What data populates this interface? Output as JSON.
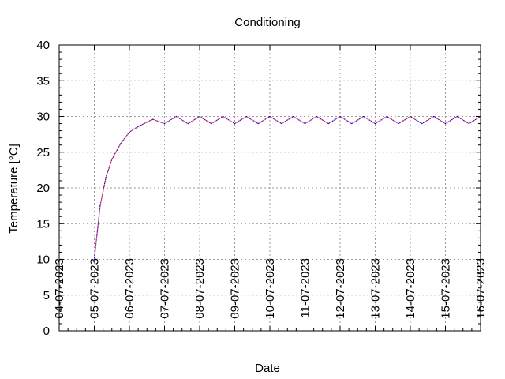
{
  "chart_data": {
    "type": "line",
    "title": "Conditioning",
    "xlabel": "Date",
    "ylabel": "Temperature [°C]",
    "xlim": [
      "04-07-2023",
      "16-07-2023"
    ],
    "ylim": [
      0,
      40
    ],
    "x_ticks": [
      "04-07-2023",
      "05-07-2023",
      "06-07-2023",
      "07-07-2023",
      "08-07-2023",
      "09-07-2023",
      "10-07-2023",
      "11-07-2023",
      "12-07-2023",
      "13-07-2023",
      "14-07-2023",
      "15-07-2023",
      "16-07-2023"
    ],
    "y_ticks": [
      0,
      5,
      10,
      15,
      20,
      25,
      30,
      35,
      40
    ],
    "grid": true,
    "colors": {
      "series_a": "#ff0000",
      "series_b": "#0000ff"
    },
    "series": [
      {
        "x": [
          "05-07-2023 00:00",
          "05-07-2023 04:00",
          "05-07-2023 08:00",
          "05-07-2023 12:00",
          "05-07-2023 18:00",
          "06-07-2023 00:00",
          "06-07-2023 06:00",
          "06-07-2023 12:00",
          "06-07-2023 16:00",
          "07-07-2023 00:00",
          "07-07-2023 08:00",
          "07-07-2023 16:00",
          "08-07-2023 00:00",
          "08-07-2023 08:00",
          "08-07-2023 16:00",
          "09-07-2023 00:00",
          "09-07-2023 08:00",
          "09-07-2023 16:00",
          "10-07-2023 00:00",
          "10-07-2023 08:00",
          "10-07-2023 16:00",
          "11-07-2023 00:00",
          "11-07-2023 08:00",
          "11-07-2023 16:00",
          "12-07-2023 00:00",
          "12-07-2023 08:00",
          "12-07-2023 16:00",
          "13-07-2023 00:00",
          "13-07-2023 08:00",
          "13-07-2023 16:00",
          "14-07-2023 00:00",
          "14-07-2023 08:00",
          "14-07-2023 16:00",
          "15-07-2023 00:00",
          "15-07-2023 08:00",
          "15-07-2023 16:00",
          "16-07-2023 00:00"
        ],
        "y": [
          10.0,
          17.5,
          21.5,
          24.0,
          26.2,
          27.8,
          28.6,
          29.2,
          29.6,
          29.0,
          30.0,
          29.0,
          30.0,
          29.0,
          30.0,
          29.0,
          30.0,
          29.0,
          30.0,
          29.0,
          30.0,
          29.0,
          30.0,
          29.0,
          30.0,
          29.0,
          30.0,
          29.0,
          30.0,
          29.0,
          30.0,
          29.0,
          30.0,
          29.0,
          30.0,
          29.0,
          30.0
        ]
      }
    ]
  }
}
